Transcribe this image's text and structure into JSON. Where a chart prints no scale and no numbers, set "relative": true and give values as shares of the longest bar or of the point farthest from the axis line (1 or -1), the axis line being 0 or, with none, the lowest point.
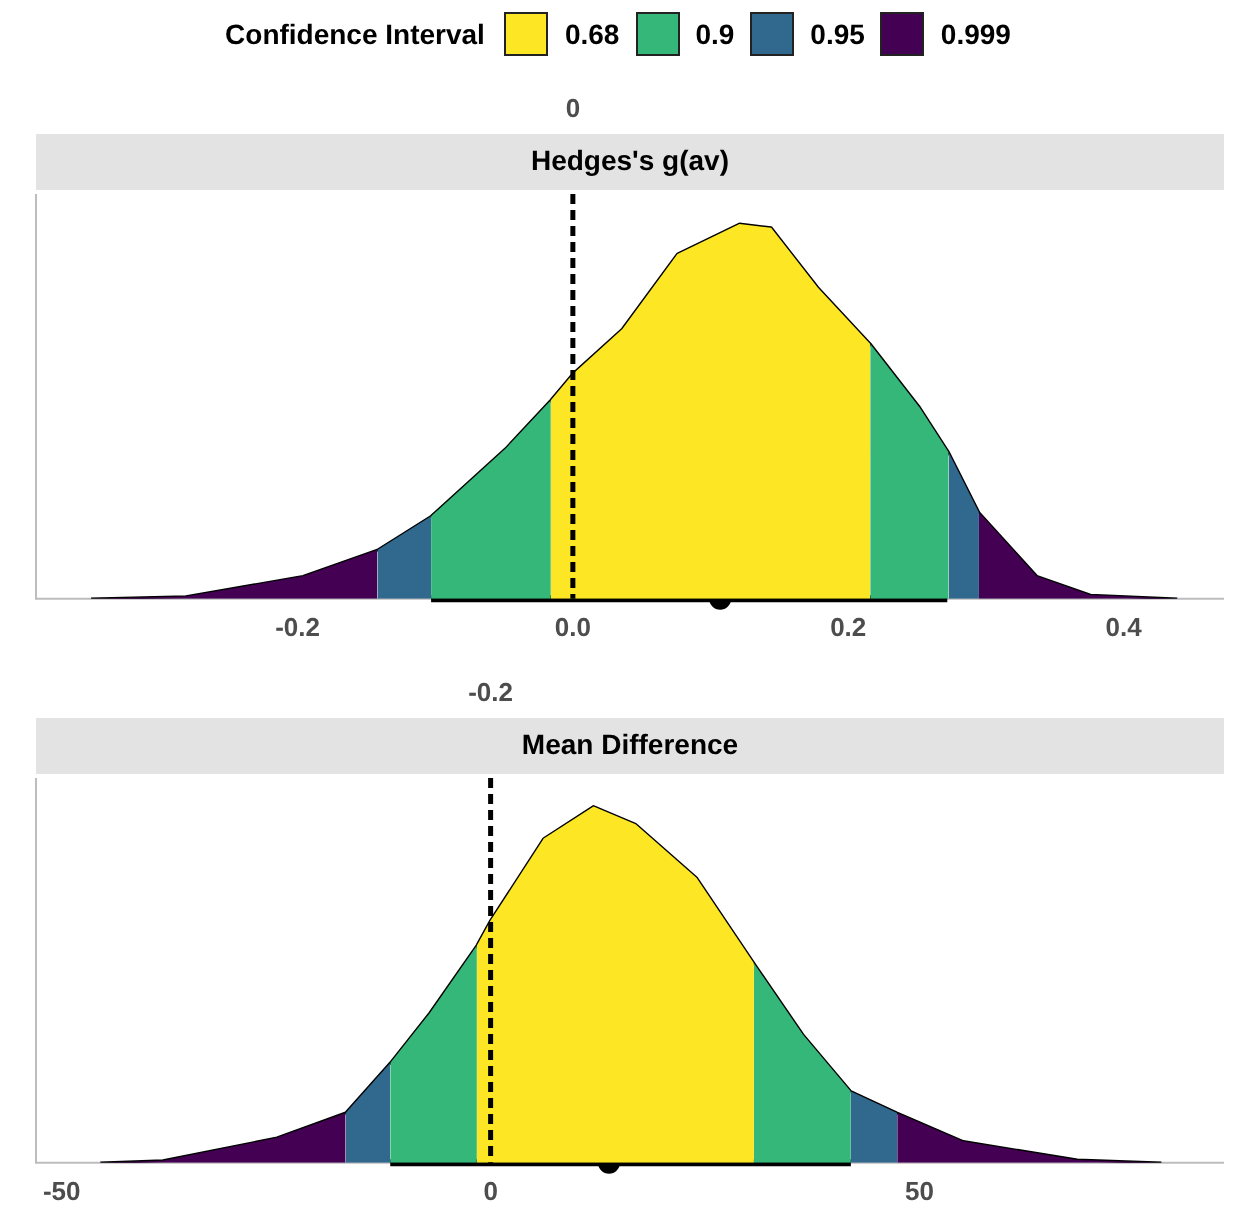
{
  "chart_data": [
    {
      "type": "area",
      "title": "Hedges's g(av)",
      "relative": true,
      "legend": "top",
      "legend_title": "Confidence Interval",
      "grid": false,
      "xlim": [
        -0.39,
        0.473
      ],
      "xticks": [
        -0.2,
        {
          "value": 0,
          "label": "0.0"
        },
        0.2,
        0.4
      ],
      "ref_lines": [
        {
          "axis": "x",
          "value": 0,
          "label": "0",
          "line_style": "dashed",
          "color": "#000000"
        }
      ],
      "series": [
        {
          "name": "0.68",
          "color": "#fde725",
          "x": [
            -0.016,
            0,
            0.036,
            0.076,
            0.121,
            0.144,
            0.178,
            0.216
          ],
          "values": [
            0.53,
            0.6,
            0.72,
            0.92,
            1.0,
            0.99,
            0.83,
            0.68
          ]
        },
        {
          "name": "0.9",
          "color": "#35b779",
          "x": [
            -0.103,
            -0.049,
            -0.016,
            0.1,
            0.216,
            0.252,
            0.273
          ],
          "values": [
            0.22,
            0.4,
            0.53,
            null,
            0.68,
            0.51,
            0.39
          ]
        },
        {
          "name": "0.95",
          "color": "#31688e",
          "x": [
            -0.142,
            -0.103,
            0.1,
            0.273,
            0.295
          ],
          "values": [
            0.13,
            0.22,
            null,
            0.39,
            0.23
          ]
        },
        {
          "name": "0.999",
          "color": "#440154",
          "x": [
            -0.35,
            -0.281,
            -0.196,
            -0.142,
            0.1,
            0.295,
            0.337,
            0.376,
            0.439
          ],
          "values": [
            0,
            0.006,
            0.06,
            0.13,
            null,
            0.23,
            0.06,
            0.01,
            0
          ]
        },
        {
          "type": "line",
          "color": "#000000",
          "x": [
            -0.35,
            -0.281,
            -0.196,
            -0.142,
            -0.103,
            -0.049,
            -0.016,
            0,
            0.036,
            0.076,
            0.121,
            0.144,
            0.178,
            0.216,
            0.252,
            0.273,
            0.295,
            0.337,
            0.376,
            0.439
          ],
          "values": [
            0,
            0.006,
            0.06,
            0.13,
            0.22,
            0.4,
            0.53,
            0.6,
            0.72,
            0.92,
            1.0,
            0.99,
            0.83,
            0.68,
            0.51,
            0.39,
            0.23,
            0.06,
            0.01,
            0
          ]
        },
        {
          "type": "scatter",
          "color": "#000000",
          "x": [
            0.107
          ],
          "values": [
            0
          ],
          "xerrors": [
            [
              -0.103,
              0.272
            ]
          ]
        }
      ]
    },
    {
      "type": "area",
      "title": "Mean Difference",
      "relative": true,
      "grid": false,
      "xlim": [
        -53,
        85.5
      ],
      "xticks": [
        -50,
        0,
        50
      ],
      "ref_lines": [
        {
          "axis": "x",
          "value": 0,
          "line_style": "dashed",
          "color": "#000000"
        }
      ],
      "annotations": [
        "-0.2"
      ],
      "series": [
        {
          "name": "0.68",
          "color": "#fde725",
          "x": [
            -1.6,
            0,
            6.2,
            12.0,
            16.9,
            24.0,
            30.7
          ],
          "values": [
            0.61,
            0.68,
            0.91,
            1.0,
            0.95,
            0.8,
            0.56
          ]
        },
        {
          "name": "0.9",
          "color": "#35b779",
          "x": [
            -11.7,
            -7.1,
            -1.6,
            14,
            30.7,
            36.4,
            42.0
          ],
          "values": [
            0.28,
            0.42,
            0.61,
            null,
            0.56,
            0.36,
            0.2
          ]
        },
        {
          "name": "0.95",
          "color": "#31688e",
          "x": [
            -16.9,
            -11.7,
            14,
            42.0,
            47.4
          ],
          "values": [
            0.14,
            0.28,
            null,
            0.2,
            0.14
          ]
        },
        {
          "name": "0.999",
          "color": "#440154",
          "x": [
            -45.5,
            -38.2,
            -24.9,
            -16.9,
            14,
            47.4,
            55.1,
            68.4,
            78.2
          ],
          "values": [
            0,
            0.006,
            0.07,
            0.14,
            null,
            0.14,
            0.06,
            0.008,
            0
          ]
        },
        {
          "type": "line",
          "color": "#000000",
          "x": [
            -45.5,
            -38.2,
            -24.9,
            -16.9,
            -11.7,
            -7.1,
            -1.6,
            0,
            6.2,
            12.0,
            16.9,
            24.0,
            30.7,
            36.4,
            42.0,
            47.4,
            55.1,
            68.4,
            78.2
          ],
          "values": [
            0,
            0.006,
            0.07,
            0.14,
            0.28,
            0.42,
            0.61,
            0.68,
            0.91,
            1.0,
            0.95,
            0.8,
            0.56,
            0.36,
            0.2,
            0.14,
            0.06,
            0.008,
            0
          ]
        },
        {
          "type": "scatter",
          "color": "#000000",
          "x": [
            13.8
          ],
          "values": [
            0
          ],
          "xerrors": [
            [
              -11.7,
              42.0
            ]
          ]
        }
      ]
    }
  ]
}
